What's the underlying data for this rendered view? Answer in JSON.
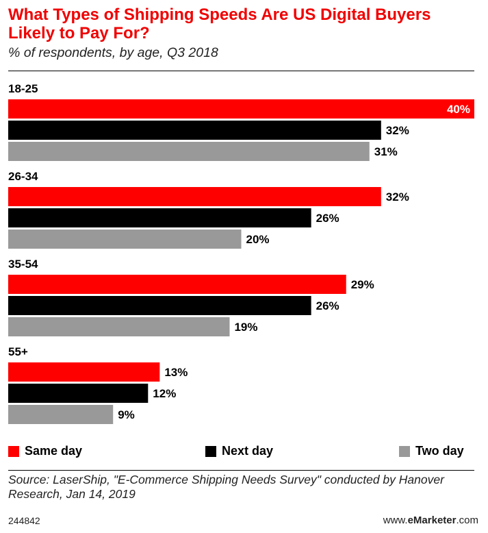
{
  "title": "What Types of Shipping Speeds Are US Digital Buyers Likely to Pay For?",
  "subtitle": "% of respondents, by age, Q3 2018",
  "chart_data": {
    "type": "bar",
    "orientation": "horizontal",
    "categories": [
      "18-25",
      "26-34",
      "35-54",
      "55+"
    ],
    "series": [
      {
        "name": "Same day",
        "color": "#ff0000",
        "values": [
          40,
          32,
          29,
          13
        ]
      },
      {
        "name": "Next day",
        "color": "#000000",
        "values": [
          32,
          26,
          26,
          12
        ]
      },
      {
        "name": "Two day",
        "color": "#999999",
        "values": [
          31,
          20,
          19,
          9
        ]
      }
    ],
    "value_suffix": "%",
    "xlim": [
      0,
      40
    ],
    "title": "What Types of Shipping Speeds Are US Digital Buyers Likely to Pay For?",
    "xlabel": "",
    "ylabel": ""
  },
  "legend": [
    {
      "label": "Same day",
      "color": "#ff0000"
    },
    {
      "label": "Next day",
      "color": "#000000"
    },
    {
      "label": "Two day",
      "color": "#999999"
    }
  ],
  "source": "Source: LaserShip, \"E-Commerce Shipping Needs Survey\" conducted by Hanover Research, Jan 14, 2019",
  "chart_id": "244842",
  "brand": {
    "prefix": "www.",
    "name": "eMarketer",
    "suffix": ".com"
  }
}
